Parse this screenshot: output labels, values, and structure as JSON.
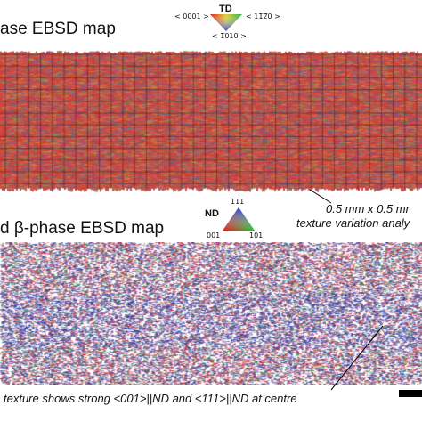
{
  "panel_a": {
    "title": "ase EBSD map",
    "key": {
      "title": "TD",
      "label_left": "< 0001 >",
      "label_right": "< 11̅2̅0 >",
      "label_bottom": "< 1̅010 >"
    },
    "annotation_line1": "0.5 mm x 0.5 mr",
    "annotation_line2": "texture variation analy",
    "colors": [
      "#d9342b",
      "#e8604a",
      "#c0452f",
      "#8a5a9c",
      "#3b6fb0",
      "#5aa35a",
      "#d9a040",
      "#b83a7a",
      "#e07860"
    ]
  },
  "panel_b": {
    "title": "d β-phase EBSD map",
    "key": {
      "title": "ND",
      "label_top": "111",
      "label_left": "001",
      "label_right": "101"
    },
    "annotation": "texture shows strong <001>||ND and <111>||ND at centre",
    "colors": [
      "#d7262b",
      "#2f3fa6",
      "#3b5fc4",
      "#2a9a45",
      "#7b3fa0",
      "#e8453c",
      "#1e2e8a",
      "#c0302a"
    ]
  }
}
